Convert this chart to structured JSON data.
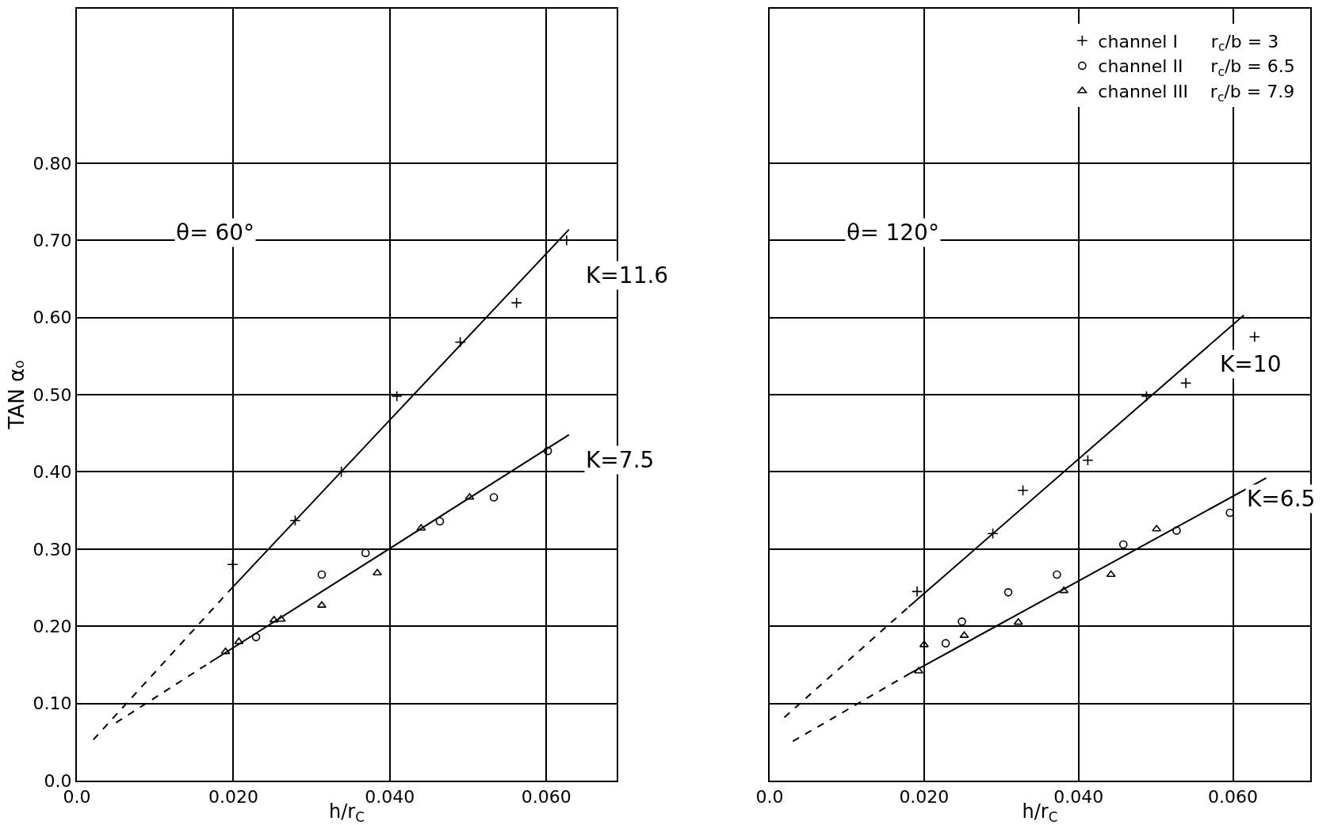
{
  "chart_data": [
    {
      "type": "scatter",
      "xlabel": "h/r$_{C}$",
      "ylabel": "TAN α₀",
      "xlim": [
        0,
        0.069
      ],
      "ylim": [
        0,
        1.0
      ],
      "xticks": [
        {
          "value": 0,
          "label": "0.0"
        },
        {
          "value": 0.02,
          "label": "0.020"
        },
        {
          "value": 0.04,
          "label": "0.040"
        },
        {
          "value": 0.06,
          "label": "0.060"
        }
      ],
      "yticks": [
        {
          "value": 0,
          "label": "0.0"
        },
        {
          "value": 0.1,
          "label": "0.10"
        },
        {
          "value": 0.2,
          "label": "0.20"
        },
        {
          "value": 0.3,
          "label": "0.30"
        },
        {
          "value": 0.4,
          "label": "0.40"
        },
        {
          "value": 0.5,
          "label": "0.50"
        },
        {
          "value": 0.6,
          "label": "0.60"
        },
        {
          "value": 0.7,
          "label": "0.70"
        },
        {
          "value": 0.8,
          "label": "0.80"
        }
      ],
      "grid": true,
      "legend": false,
      "series": [
        {
          "type": "scatter",
          "marker": "cross",
          "color": "#000000",
          "x": [
            0.0199,
            0.0279,
            0.0338,
            0.0409,
            0.049,
            0.0562,
            0.0626
          ],
          "values": [
            0.28,
            0.337,
            0.4,
            0.498,
            0.568,
            0.619,
            0.7
          ]
        },
        {
          "type": "scatter",
          "marker": "circle",
          "color": "#000000",
          "x": [
            0.0229,
            0.0313,
            0.0369,
            0.0464,
            0.0533,
            0.0602
          ],
          "values": [
            0.186,
            0.267,
            0.295,
            0.336,
            0.367,
            0.427
          ]
        },
        {
          "type": "scatter",
          "marker": "triangle",
          "color": "#000000",
          "x": [
            0.019,
            0.0207,
            0.0252,
            0.0261,
            0.0313,
            0.0384,
            0.044,
            0.0502
          ],
          "values": [
            0.167,
            0.18,
            0.208,
            0.209,
            0.227,
            0.269,
            0.327,
            0.367
          ]
        },
        {
          "type": "line",
          "line_style": "solid",
          "color": "#000000",
          "x": [
            0.0194,
            0.0629
          ],
          "values": [
            0.245,
            0.714
          ]
        },
        {
          "type": "line",
          "line_style": "dashed",
          "color": "#000000",
          "x": [
            0.0021,
            0.0194
          ],
          "values": [
            0.053,
            0.245
          ]
        },
        {
          "type": "line",
          "line_style": "solid",
          "color": "#000000",
          "x": [
            0.017,
            0.0629
          ],
          "values": [
            0.153,
            0.448
          ]
        },
        {
          "type": "line",
          "line_style": "dashed",
          "color": "#000000",
          "x": [
            0.005,
            0.017
          ],
          "values": [
            0.075,
            0.153
          ]
        }
      ],
      "annotations": [
        "θ= 60°",
        "K=11.6",
        "K=7.5"
      ]
    },
    {
      "type": "scatter",
      "xlabel": "h/r$_{C}$",
      "xlim": [
        0,
        0.07
      ],
      "ylim": [
        0,
        1.0
      ],
      "xticks": [
        {
          "value": 0,
          "label": "0.0"
        },
        {
          "value": 0.02,
          "label": "0.020"
        },
        {
          "value": 0.04,
          "label": "0.040"
        },
        {
          "value": 0.06,
          "label": "0.060"
        }
      ],
      "yticks": [
        0,
        0.1,
        0.2,
        0.3,
        0.4,
        0.5,
        0.6,
        0.7,
        0.8
      ],
      "tick_labels": "x",
      "grid": true,
      "legend": "top right",
      "series": [
        {
          "name": "channel I      r$_{c}$/b = 3",
          "type": "scatter",
          "marker": "cross",
          "color": "#000000",
          "x": [
            0.0191,
            0.0289,
            0.0328,
            0.0412,
            0.0488,
            0.0539,
            0.0628
          ],
          "values": [
            0.245,
            0.32,
            0.376,
            0.415,
            0.498,
            0.515,
            0.575
          ]
        },
        {
          "name": "channel II     r$_{c}$/b = 6.5",
          "type": "scatter",
          "marker": "circle",
          "color": "#000000",
          "x": [
            0.0228,
            0.0249,
            0.0309,
            0.0372,
            0.0458,
            0.0527,
            0.0596
          ],
          "values": [
            0.178,
            0.206,
            0.244,
            0.267,
            0.306,
            0.324,
            0.347
          ]
        },
        {
          "name": "channel III    r$_{c}$/b = 7.9",
          "type": "scatter",
          "marker": "triangle",
          "color": "#000000",
          "x": [
            0.0193,
            0.02,
            0.0252,
            0.0322,
            0.0381,
            0.0442,
            0.0501
          ],
          "values": [
            0.142,
            0.176,
            0.188,
            0.205,
            0.246,
            0.267,
            0.326
          ]
        },
        {
          "type": "line",
          "line_style": "solid",
          "color": "#000000",
          "x": [
            0.018,
            0.0614
          ],
          "values": [
            0.225,
            0.603
          ]
        },
        {
          "type": "line",
          "line_style": "dashed",
          "color": "#000000",
          "x": [
            0.0019,
            0.018
          ],
          "values": [
            0.082,
            0.225
          ]
        },
        {
          "type": "line",
          "line_style": "solid",
          "color": "#000000",
          "x": [
            0.0182,
            0.0643
          ],
          "values": [
            0.139,
            0.392
          ]
        },
        {
          "type": "line",
          "line_style": "dashed",
          "color": "#000000",
          "x": [
            0.003,
            0.0182
          ],
          "values": [
            0.051,
            0.139
          ]
        }
      ],
      "annotations": [
        "θ= 120°",
        "K=10",
        "K=6.5"
      ]
    }
  ]
}
